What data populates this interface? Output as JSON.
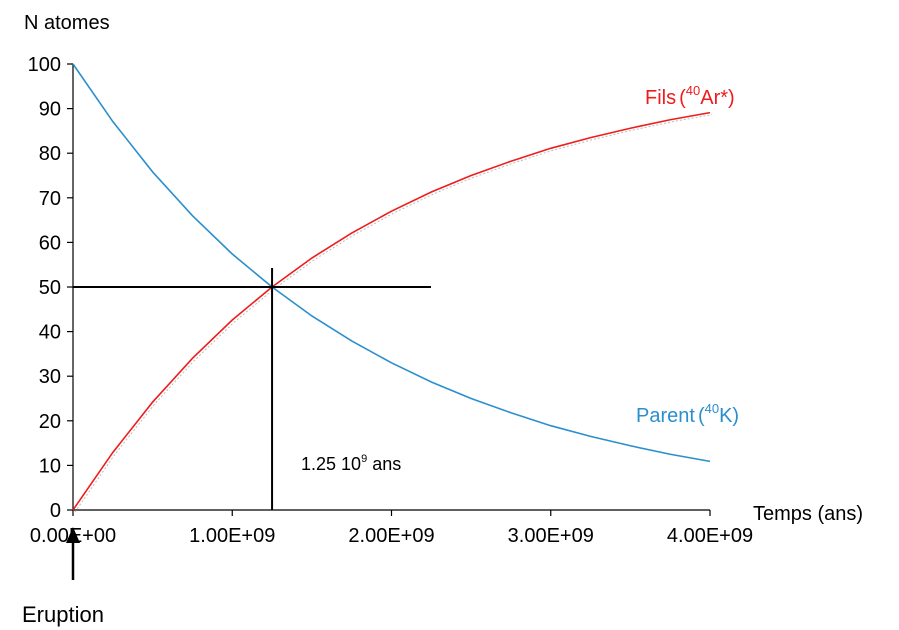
{
  "chart_data": {
    "type": "line",
    "ylabel": "N atomes",
    "xlabel": "Temps (ans)",
    "xlim": [
      0,
      4000000000
    ],
    "ylim": [
      0,
      100
    ],
    "x_ticks": [
      0,
      1000000000,
      2000000000,
      3000000000,
      4000000000
    ],
    "x_tick_labels": [
      "0.00E+00",
      "1.00E+09",
      "2.00E+09",
      "3.00E+09",
      "4.00E+09"
    ],
    "y_ticks": [
      0,
      10,
      20,
      30,
      40,
      50,
      60,
      70,
      80,
      90,
      100
    ],
    "y_tick_labels": [
      "0",
      "10",
      "20",
      "30",
      "40",
      "50",
      "60",
      "70",
      "80",
      "90",
      "100"
    ],
    "grid": false,
    "half_life": 1250000000,
    "series": [
      {
        "name_prefix": "Fils",
        "name_iso": "40",
        "name_symbol": "Ar*",
        "color": "#ee1c1c",
        "x": [
          0,
          250000000,
          500000000,
          750000000,
          1000000000,
          1250000000,
          1500000000,
          1750000000,
          2000000000,
          2250000000,
          2500000000,
          2750000000,
          3000000000,
          3250000000,
          3500000000,
          3750000000,
          4000000000
        ],
        "values": [
          0,
          12.9,
          24.2,
          34.0,
          42.6,
          50.0,
          56.5,
          62.1,
          67.0,
          71.3,
          75.0,
          78.2,
          81.1,
          83.5,
          85.6,
          87.5,
          89.1
        ]
      },
      {
        "name_prefix": "Parent",
        "name_iso": "40",
        "name_symbol": "K",
        "color": "#2a8fcc",
        "x": [
          0,
          250000000,
          500000000,
          750000000,
          1000000000,
          1250000000,
          1500000000,
          1750000000,
          2000000000,
          2250000000,
          2500000000,
          2750000000,
          3000000000,
          3250000000,
          3500000000,
          3750000000,
          4000000000
        ],
        "values": [
          100,
          87.1,
          75.8,
          66.0,
          57.4,
          50.0,
          43.5,
          37.9,
          33.0,
          28.7,
          25.0,
          21.8,
          18.9,
          16.5,
          14.4,
          12.5,
          10.9
        ]
      }
    ],
    "annotations": {
      "half_life_label": "1.25 10",
      "half_life_exp": "9",
      "half_life_unit": " ans",
      "eruption_label": "Eruption"
    }
  }
}
